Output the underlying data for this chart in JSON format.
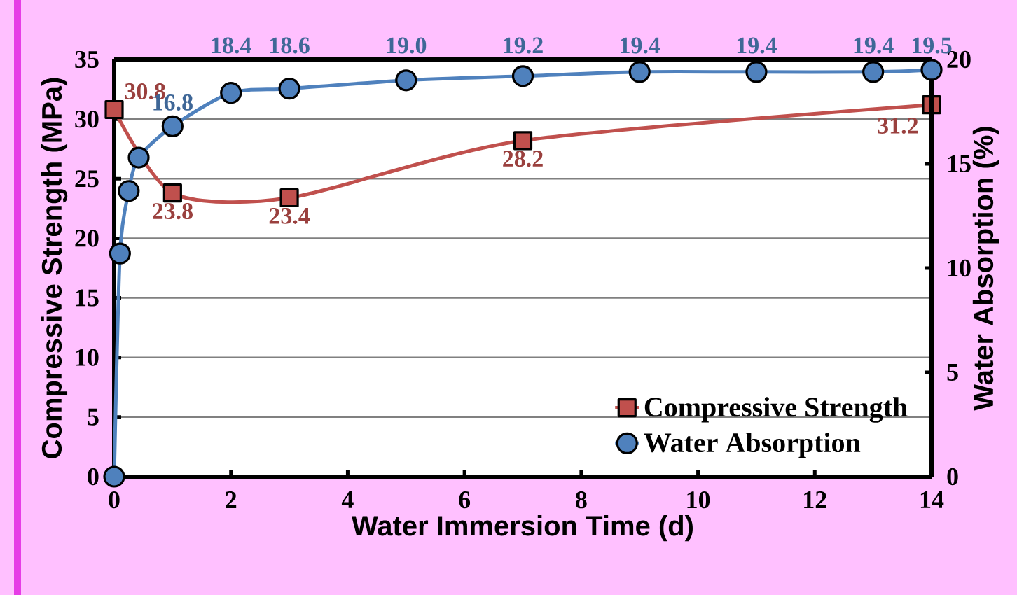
{
  "chart_data": {
    "type": "line",
    "xlabel": "Water Immersion Time (d)",
    "ylabel": "Compressive Strength (MPa)",
    "y2label": "Water Absorption (%)",
    "xlim": [
      0,
      14
    ],
    "xticks": [
      0,
      2,
      4,
      6,
      8,
      10,
      12,
      14
    ],
    "ylim": [
      0,
      35
    ],
    "yticks": [
      0,
      5,
      10,
      15,
      20,
      25,
      30,
      35
    ],
    "y2lim": [
      0,
      20
    ],
    "y2ticks": [
      0,
      5,
      10,
      15,
      20
    ],
    "grid": "y",
    "legend": "bottom right",
    "series": [
      {
        "name": "Compressive Strength",
        "color": "#c0504d",
        "marker": "square",
        "x": [
          0,
          1,
          3,
          7,
          14
        ],
        "values": [
          30.8,
          23.8,
          23.4,
          28.2,
          31.2
        ],
        "value_labels": [
          "30.8",
          "23.8",
          "23.4",
          "28.2",
          "31.2"
        ]
      },
      {
        "name": "Water Absorption",
        "color": "#4f81bd",
        "marker": "circle",
        "axis": "y2",
        "x": [
          0,
          0.1,
          0.25,
          0.42,
          1,
          2,
          3,
          5,
          7,
          9,
          11,
          13,
          14
        ],
        "values": [
          0,
          10.7,
          13.7,
          15.3,
          16.8,
          18.4,
          18.6,
          19.0,
          19.2,
          19.4,
          19.4,
          19.4,
          19.5
        ],
        "value_labels": [
          null,
          null,
          null,
          null,
          "16.8",
          "18.4",
          "18.6",
          "19.0",
          "19.2",
          "19.4",
          "19.4",
          "19.4",
          "19.5"
        ]
      }
    ]
  }
}
